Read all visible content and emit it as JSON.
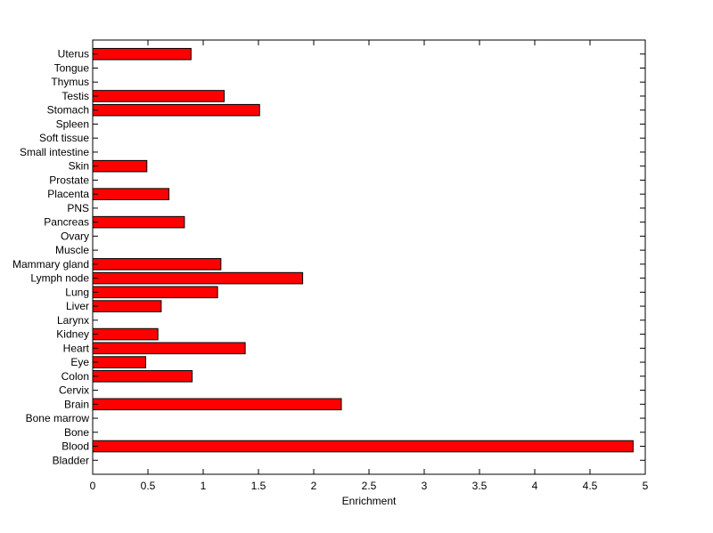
{
  "chart_data": {
    "type": "bar",
    "orientation": "horizontal",
    "title": "",
    "xlabel": "Enrichment",
    "ylabel": "",
    "xlim": [
      0,
      5
    ],
    "xticks": [
      0,
      0.5,
      1,
      1.5,
      2,
      2.5,
      3,
      3.5,
      4,
      4.5,
      5
    ],
    "xtick_labels": [
      "0",
      "0.5",
      "1",
      "1.5",
      "2",
      "2.5",
      "3",
      "3.5",
      "4",
      "4.5",
      "5"
    ],
    "grid": false,
    "legend": "none",
    "bar_color": "#ff0000",
    "categories": [
      "Uterus",
      "Tongue",
      "Thymus",
      "Testis",
      "Stomach",
      "Spleen",
      "Soft tissue",
      "Small intestine",
      "Skin",
      "Prostate",
      "Placenta",
      "PNS",
      "Pancreas",
      "Ovary",
      "Muscle",
      "Mammary gland",
      "Lymph node",
      "Lung",
      "Liver",
      "Larynx",
      "Kidney",
      "Heart",
      "Eye",
      "Colon",
      "Cervix",
      "Brain",
      "Bone marrow",
      "Bone",
      "Blood",
      "Bladder"
    ],
    "values": [
      0.89,
      0,
      0,
      1.19,
      1.51,
      0,
      0,
      0,
      0.49,
      0,
      0.69,
      0,
      0.83,
      0,
      0,
      1.16,
      1.9,
      1.13,
      0.62,
      0,
      0.59,
      1.38,
      0.48,
      0.9,
      0,
      2.25,
      0,
      0,
      4.89,
      0
    ]
  }
}
